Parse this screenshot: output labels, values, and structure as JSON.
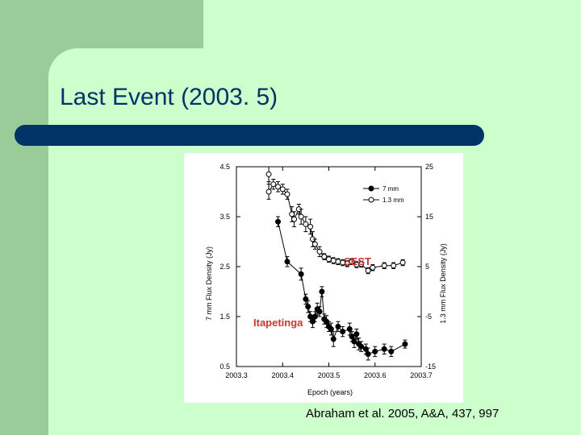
{
  "slide": {
    "title": "Last Event (2003. 5)",
    "citation": "Abraham et al. 2005, A&A, 437, 997",
    "colors": {
      "background": "#ccffcc",
      "sidebar": "#99cc99",
      "accent": "#003366"
    }
  },
  "chart_data": {
    "type": "scatter",
    "title": "",
    "xlabel": "Epoch (years)",
    "ylabel_left": "7 mm Flux Density (Jy)",
    "ylabel_right": "1.3 mm Flux Density (Jy)",
    "xlim": [
      2003.3,
      2003.7
    ],
    "ylim_left": [
      0.5,
      4.5
    ],
    "ylim_right": [
      -15,
      25
    ],
    "x_ticks": [
      "2003.3",
      "2003.4",
      "2003.5",
      "2003.6",
      "2003.7"
    ],
    "y_left_ticks": [
      "0.5",
      "1.5",
      "2.5",
      "3.5",
      "4.5"
    ],
    "y_right_ticks": [
      "-15",
      "-5",
      "5",
      "15",
      "25"
    ],
    "legend_position": "top-right",
    "annotations": [
      {
        "text": "SEST",
        "color": "#cc3333"
      },
      {
        "text": "Itapetinga",
        "color": "#cc3333"
      }
    ],
    "series": [
      {
        "name": "7 mm",
        "axis": "left",
        "marker": "filled-circle",
        "points": [
          {
            "x": 2003.39,
            "y": 3.4,
            "err": 0.1
          },
          {
            "x": 2003.41,
            "y": 2.6,
            "err": 0.1
          },
          {
            "x": 2003.44,
            "y": 2.35,
            "err": 0.12
          },
          {
            "x": 2003.45,
            "y": 1.85,
            "err": 0.1
          },
          {
            "x": 2003.455,
            "y": 1.7,
            "err": 0.12
          },
          {
            "x": 2003.46,
            "y": 1.5,
            "err": 0.1
          },
          {
            "x": 2003.465,
            "y": 1.4,
            "err": 0.12
          },
          {
            "x": 2003.47,
            "y": 1.5,
            "err": 0.1
          },
          {
            "x": 2003.475,
            "y": 1.65,
            "err": 0.12
          },
          {
            "x": 2003.48,
            "y": 1.6,
            "err": 0.1
          },
          {
            "x": 2003.485,
            "y": 2.0,
            "err": 0.1
          },
          {
            "x": 2003.49,
            "y": 1.45,
            "err": 0.1
          },
          {
            "x": 2003.495,
            "y": 1.4,
            "err": 0.12
          },
          {
            "x": 2003.5,
            "y": 1.3,
            "err": 0.1
          },
          {
            "x": 2003.505,
            "y": 1.25,
            "err": 0.12
          },
          {
            "x": 2003.51,
            "y": 1.05,
            "err": 0.15
          },
          {
            "x": 2003.52,
            "y": 1.3,
            "err": 0.1
          },
          {
            "x": 2003.53,
            "y": 1.2,
            "err": 0.1
          },
          {
            "x": 2003.545,
            "y": 1.25,
            "err": 0.12
          },
          {
            "x": 2003.55,
            "y": 1.1,
            "err": 0.1
          },
          {
            "x": 2003.555,
            "y": 1.0,
            "err": 0.12
          },
          {
            "x": 2003.56,
            "y": 1.15,
            "err": 0.1
          },
          {
            "x": 2003.565,
            "y": 0.95,
            "err": 0.12
          },
          {
            "x": 2003.57,
            "y": 0.9,
            "err": 0.1
          },
          {
            "x": 2003.58,
            "y": 0.85,
            "err": 0.1
          },
          {
            "x": 2003.585,
            "y": 0.75,
            "err": 0.12
          },
          {
            "x": 2003.6,
            "y": 0.8,
            "err": 0.1
          },
          {
            "x": 2003.62,
            "y": 0.85,
            "err": 0.1
          },
          {
            "x": 2003.635,
            "y": 0.8,
            "err": 0.1
          },
          {
            "x": 2003.665,
            "y": 0.95,
            "err": 0.08
          }
        ]
      },
      {
        "name": "1.3 mm",
        "axis": "right",
        "marker": "open-circle",
        "points": [
          {
            "x": 2003.37,
            "y": 23.5,
            "err": 1.5
          },
          {
            "x": 2003.37,
            "y": 20.0,
            "err": 1.5
          },
          {
            "x": 2003.38,
            "y": 21.5,
            "err": 1.0
          },
          {
            "x": 2003.39,
            "y": 21.0,
            "err": 1.0
          },
          {
            "x": 2003.4,
            "y": 20.5,
            "err": 1.0
          },
          {
            "x": 2003.41,
            "y": 19.5,
            "err": 1.0
          },
          {
            "x": 2003.42,
            "y": 15.5,
            "err": 1.5
          },
          {
            "x": 2003.425,
            "y": 14.5,
            "err": 1.5
          },
          {
            "x": 2003.435,
            "y": 16.5,
            "err": 1.0
          },
          {
            "x": 2003.44,
            "y": 15.0,
            "err": 1.5
          },
          {
            "x": 2003.45,
            "y": 13.5,
            "err": 1.5
          },
          {
            "x": 2003.46,
            "y": 13.0,
            "err": 1.5
          },
          {
            "x": 2003.465,
            "y": 10.5,
            "err": 1.5
          },
          {
            "x": 2003.47,
            "y": 9.5,
            "err": 1.0
          },
          {
            "x": 2003.48,
            "y": 8.0,
            "err": 1.0
          },
          {
            "x": 2003.49,
            "y": 7.0,
            "err": 0.6
          },
          {
            "x": 2003.5,
            "y": 6.5,
            "err": 0.6
          },
          {
            "x": 2003.51,
            "y": 6.2,
            "err": 0.6
          },
          {
            "x": 2003.52,
            "y": 6.0,
            "err": 0.6
          },
          {
            "x": 2003.53,
            "y": 5.8,
            "err": 0.6
          },
          {
            "x": 2003.54,
            "y": 5.6,
            "err": 0.6
          },
          {
            "x": 2003.55,
            "y": 6.0,
            "err": 0.6
          },
          {
            "x": 2003.56,
            "y": 5.4,
            "err": 0.6
          },
          {
            "x": 2003.57,
            "y": 5.5,
            "err": 0.6
          },
          {
            "x": 2003.585,
            "y": 4.2,
            "err": 0.6
          },
          {
            "x": 2003.595,
            "y": 4.8,
            "err": 0.6
          },
          {
            "x": 2003.62,
            "y": 5.2,
            "err": 0.6
          },
          {
            "x": 2003.64,
            "y": 5.2,
            "err": 0.6
          },
          {
            "x": 2003.66,
            "y": 5.8,
            "err": 0.6
          }
        ]
      }
    ]
  }
}
